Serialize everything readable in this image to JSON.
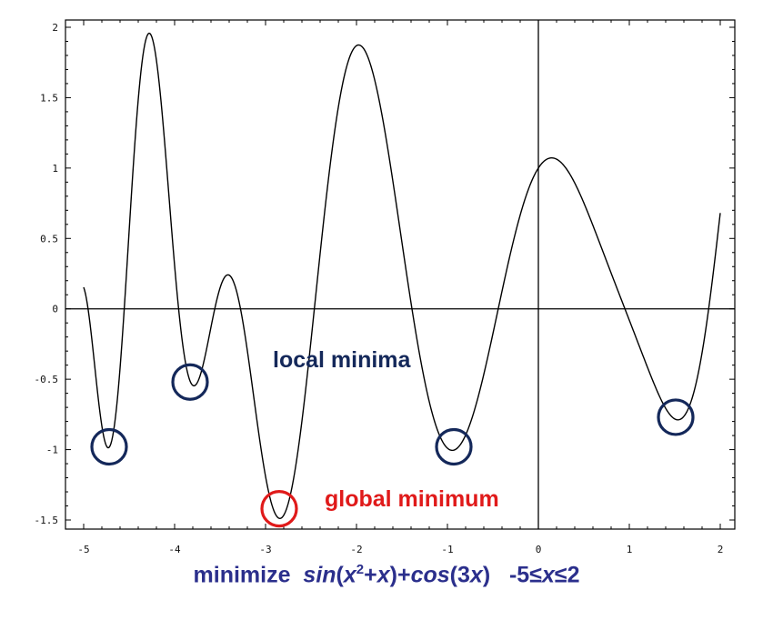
{
  "colors": {
    "curve": "#000000",
    "local_marker": "#14285a",
    "global_marker": "#e01a1a",
    "caption": "#2b2f8c"
  },
  "chart_data": {
    "type": "line",
    "function": "sin(x^2 + x) + cos(3x)",
    "xlim": [
      -5,
      2
    ],
    "ylim": [
      -1.5,
      2
    ],
    "xticks": [
      -5,
      -4,
      -3,
      -2,
      -1,
      0,
      1,
      2
    ],
    "yticks": [
      -1.5,
      -1,
      -0.5,
      0,
      0.5,
      1,
      1.5,
      2
    ],
    "xtick_labels": [
      "-5",
      "-4",
      "-3",
      "-2",
      "-1",
      "0",
      "1",
      "2"
    ],
    "ytick_labels": [
      "-1.5",
      "-1",
      "-0.5",
      "0",
      "0.5",
      "1",
      "1.5",
      "2"
    ],
    "local_minima": [
      {
        "x": -4.72,
        "y": -0.98
      },
      {
        "x": -3.83,
        "y": -0.52
      },
      {
        "x": -0.93,
        "y": -0.98
      },
      {
        "x": 1.51,
        "y": -0.77
      }
    ],
    "global_minimum": {
      "x": -2.85,
      "y": -1.42
    },
    "annotations": {
      "local": "local minima",
      "global": "global minimum"
    },
    "caption": {
      "minimize": "minimize",
      "sin": "sin",
      "open1": "(",
      "x1": "x",
      "exp": "2",
      "plus1": "+",
      "x2": "x",
      "close_plus": ")+",
      "cos": "cos",
      "open2": "(3",
      "x3": "x",
      "close2": ")",
      "range_start": "-5≤",
      "x4": "x",
      "range_end": "≤2"
    }
  }
}
